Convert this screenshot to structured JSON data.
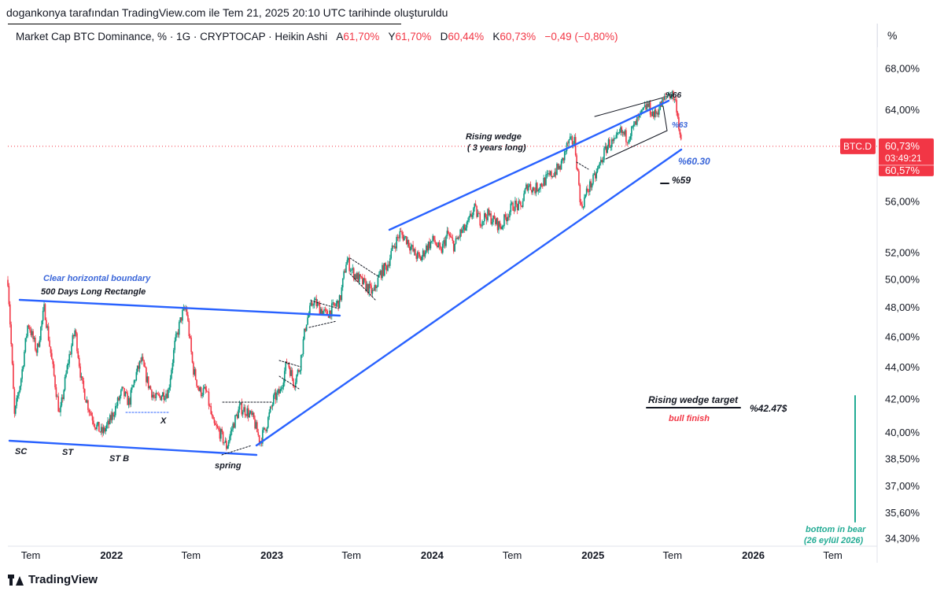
{
  "header": {
    "attribution": "dogankonya tarafından TradingView.com ile Tem 21, 2025 20:10 UTC tarihinde oluşturuldu"
  },
  "legend": {
    "symbol": "Market Cap BTC Dominance, % · 1G · CRYPTOCAP · Heikin Ashi",
    "open_label": "A",
    "open": "61,70%",
    "high_label": "Y",
    "high": "61,70%",
    "low_label": "D",
    "low": "60,44%",
    "close_label": "K",
    "close": "60,73%",
    "change": "−0,49 (−0,80%)"
  },
  "unit_label": "%",
  "price_badge": {
    "ticker": "BTC.D",
    "price": "60,73%",
    "countdown": "03:49:21",
    "secondary": "60,57%"
  },
  "footer": {
    "brand": "TradingView"
  },
  "colors": {
    "trendline": "#2962ff",
    "up_candle": "#089981",
    "down_candle": "#f23645",
    "price_line": "#f23645",
    "annotation_blue": "#3a66d9",
    "annotation_red": "#f23645",
    "annotation_green": "#22ab94"
  },
  "chart_data": {
    "type": "candlestick",
    "title": "",
    "xlabel": "",
    "ylabel": "",
    "y_scale": "log",
    "ylim": [
      34.0,
      70.0
    ],
    "y_ticks": [
      {
        "value": 68.0,
        "label": "68,00%"
      },
      {
        "value": 64.0,
        "label": "64,00%"
      },
      {
        "value": 56.0,
        "label": "56,00%"
      },
      {
        "value": 52.0,
        "label": "52,00%"
      },
      {
        "value": 50.0,
        "label": "50,00%"
      },
      {
        "value": 48.0,
        "label": "48,00%"
      },
      {
        "value": 46.0,
        "label": "46,00%"
      },
      {
        "value": 44.0,
        "label": "44,00%"
      },
      {
        "value": 42.0,
        "label": "42,00%"
      },
      {
        "value": 40.0,
        "label": "40,00%"
      },
      {
        "value": 38.5,
        "label": "38,50%"
      },
      {
        "value": 37.0,
        "label": "37,00%"
      },
      {
        "value": 35.6,
        "label": "35,60%"
      },
      {
        "value": 34.3,
        "label": "34,30%"
      }
    ],
    "x_range": [
      "2021-05-10",
      "2026-10-10"
    ],
    "x_ticks": [
      {
        "date": "2021-07-01",
        "label": "Tem",
        "bold": false
      },
      {
        "date": "2022-01-01",
        "label": "2022",
        "bold": true
      },
      {
        "date": "2022-07-01",
        "label": "Tem",
        "bold": false
      },
      {
        "date": "2023-01-01",
        "label": "2023",
        "bold": true
      },
      {
        "date": "2023-07-01",
        "label": "Tem",
        "bold": false
      },
      {
        "date": "2024-01-01",
        "label": "2024",
        "bold": true
      },
      {
        "date": "2024-07-01",
        "label": "Tem",
        "bold": false
      },
      {
        "date": "2025-01-01",
        "label": "2025",
        "bold": true
      },
      {
        "date": "2025-07-01",
        "label": "Tem",
        "bold": false
      },
      {
        "date": "2026-01-01",
        "label": "2026",
        "bold": true
      },
      {
        "date": "2026-07-01",
        "label": "Tem",
        "bold": false
      }
    ],
    "last_price": 60.73,
    "price_path": [
      [
        "2021-05-10",
        50.0
      ],
      [
        "2021-05-25",
        41.0
      ],
      [
        "2021-06-10",
        43.5
      ],
      [
        "2021-06-25",
        47.0
      ],
      [
        "2021-07-15",
        45.0
      ],
      [
        "2021-08-01",
        48.0
      ],
      [
        "2021-08-20",
        44.0
      ],
      [
        "2021-09-05",
        41.0
      ],
      [
        "2021-09-25",
        44.5
      ],
      [
        "2021-10-10",
        46.5
      ],
      [
        "2021-10-25",
        43.0
      ],
      [
        "2021-11-10",
        41.5
      ],
      [
        "2021-11-25",
        40.5
      ],
      [
        "2021-12-10",
        40.0
      ],
      [
        "2021-12-25",
        40.5
      ],
      [
        "2022-01-10",
        41.5
      ],
      [
        "2022-01-25",
        42.5
      ],
      [
        "2022-02-10",
        41.8
      ],
      [
        "2022-02-25",
        43.5
      ],
      [
        "2022-03-10",
        44.5
      ],
      [
        "2022-03-25",
        43.0
      ],
      [
        "2022-04-10",
        42.0
      ],
      [
        "2022-04-25",
        42.3
      ],
      [
        "2022-05-10",
        42.5
      ],
      [
        "2022-05-25",
        45.5
      ],
      [
        "2022-06-10",
        47.5
      ],
      [
        "2022-06-20",
        48.0
      ],
      [
        "2022-07-05",
        44.0
      ],
      [
        "2022-07-20",
        42.5
      ],
      [
        "2022-08-05",
        42.5
      ],
      [
        "2022-08-20",
        40.5
      ],
      [
        "2022-09-05",
        40.0
      ],
      [
        "2022-09-20",
        39.2
      ],
      [
        "2022-10-05",
        40.5
      ],
      [
        "2022-10-20",
        41.5
      ],
      [
        "2022-11-05",
        41.3
      ],
      [
        "2022-11-20",
        40.8
      ],
      [
        "2022-12-05",
        39.5
      ],
      [
        "2022-12-20",
        40.5
      ],
      [
        "2023-01-05",
        42.0
      ],
      [
        "2023-01-20",
        42.5
      ],
      [
        "2023-02-05",
        44.5
      ],
      [
        "2023-02-20",
        43.0
      ],
      [
        "2023-03-05",
        44.0
      ],
      [
        "2023-03-20",
        47.0
      ],
      [
        "2023-04-05",
        48.5
      ],
      [
        "2023-04-20",
        48.0
      ],
      [
        "2023-05-05",
        47.5
      ],
      [
        "2023-05-20",
        48.0
      ],
      [
        "2023-06-05",
        48.5
      ],
      [
        "2023-06-20",
        51.5
      ],
      [
        "2023-07-05",
        50.5
      ],
      [
        "2023-07-20",
        50.0
      ],
      [
        "2023-08-05",
        49.5
      ],
      [
        "2023-08-20",
        49.0
      ],
      [
        "2023-09-05",
        50.5
      ],
      [
        "2023-09-20",
        51.0
      ],
      [
        "2023-10-05",
        52.5
      ],
      [
        "2023-10-20",
        53.5
      ],
      [
        "2023-11-05",
        53.0
      ],
      [
        "2023-11-20",
        52.0
      ],
      [
        "2023-12-05",
        51.5
      ],
      [
        "2023-12-20",
        52.5
      ],
      [
        "2024-01-05",
        53.0
      ],
      [
        "2024-01-20",
        52.0
      ],
      [
        "2024-02-05",
        53.5
      ],
      [
        "2024-02-20",
        52.5
      ],
      [
        "2024-03-05",
        53.5
      ],
      [
        "2024-03-20",
        54.0
      ],
      [
        "2024-04-05",
        55.5
      ],
      [
        "2024-04-20",
        54.5
      ],
      [
        "2024-05-05",
        55.0
      ],
      [
        "2024-05-20",
        54.5
      ],
      [
        "2024-06-05",
        54.0
      ],
      [
        "2024-06-20",
        55.0
      ],
      [
        "2024-07-05",
        55.8
      ],
      [
        "2024-07-20",
        55.5
      ],
      [
        "2024-08-05",
        57.5
      ],
      [
        "2024-08-20",
        57.0
      ],
      [
        "2024-09-05",
        57.5
      ],
      [
        "2024-09-20",
        58.0
      ],
      [
        "2024-10-05",
        58.5
      ],
      [
        "2024-10-20",
        59.0
      ],
      [
        "2024-11-05",
        61.0
      ],
      [
        "2024-11-20",
        61.2
      ],
      [
        "2024-12-05",
        55.5
      ],
      [
        "2024-12-20",
        57.0
      ],
      [
        "2025-01-05",
        58.0
      ],
      [
        "2025-01-20",
        59.5
      ],
      [
        "2025-02-05",
        61.0
      ],
      [
        "2025-02-20",
        61.0
      ],
      [
        "2025-03-05",
        62.0
      ],
      [
        "2025-03-20",
        61.5
      ],
      [
        "2025-04-05",
        62.5
      ],
      [
        "2025-04-20",
        63.5
      ],
      [
        "2025-05-05",
        64.5
      ],
      [
        "2025-05-20",
        63.5
      ],
      [
        "2025-06-05",
        64.5
      ],
      [
        "2025-06-20",
        65.5
      ],
      [
        "2025-07-01",
        65.5
      ],
      [
        "2025-07-10",
        64.5
      ],
      [
        "2025-07-21",
        60.73
      ]
    ]
  },
  "annotations": {
    "clear_boundary": "Clear horizontal boundary",
    "rectangle": "500 Days Long Rectangle",
    "sc": "SC",
    "st": "ST",
    "st_b": "ST B",
    "x": "X",
    "spring": "spring",
    "wedge_title": "Rising wedge",
    "wedge_sub": "( 3 years long)",
    "p66": "%66",
    "p63": "%63",
    "p6030": "%60.30",
    "p59": "%59",
    "target": "Rising wedge target",
    "target_value": "%42.47$",
    "bull_finish": "bull finish",
    "bottom": "bottom in bear",
    "bottom_date": "(26 eylül 2026)"
  }
}
